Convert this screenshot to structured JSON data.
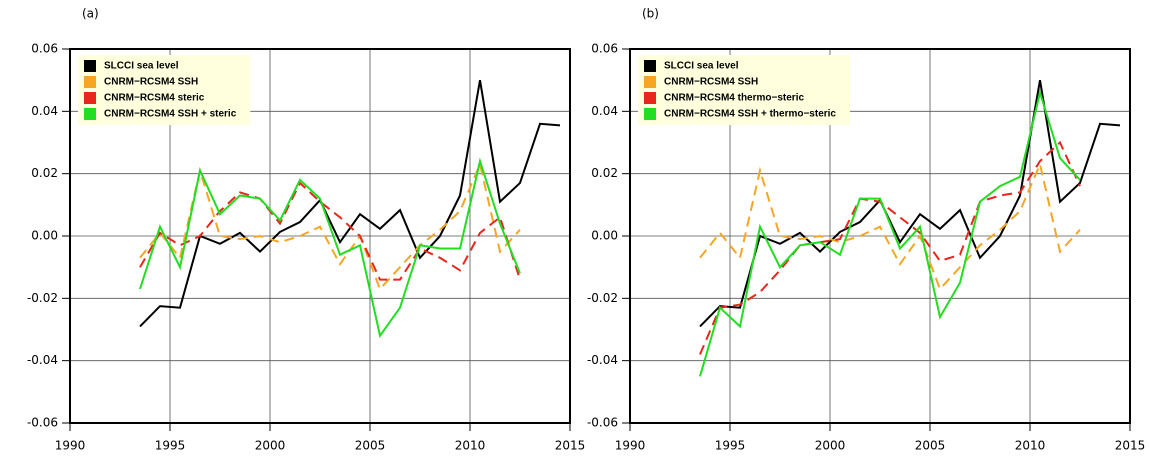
{
  "chart_data": [
    {
      "type": "line",
      "panel_label": "(a)",
      "x": [
        1993.5,
        1994.5,
        1995.5,
        1996.5,
        1997.5,
        1998.5,
        1999.5,
        2000.5,
        2001.5,
        2002.5,
        2003.5,
        2004.5,
        2005.5,
        2006.5,
        2007.5,
        2008.5,
        2009.5,
        2010.5,
        2011.5,
        2012.5,
        2013.5,
        2014.5
      ],
      "series": [
        {
          "name": "SLCCI sea level",
          "color": "#000000",
          "linestyle": "solid",
          "values": [
            -0.029,
            -0.0225,
            -0.023,
            0.0,
            -0.0025,
            0.001,
            -0.005,
            0.0013,
            0.0045,
            0.0115,
            -0.002,
            0.007,
            0.0023,
            0.0083,
            -0.007,
            0.0,
            0.013,
            0.05,
            0.011,
            0.017,
            0.036,
            0.0355
          ]
        },
        {
          "name": "CNRM−RCSM4 SSH",
          "color": "#f5a623",
          "linestyle": "dashed",
          "values": [
            -0.007,
            0.001,
            -0.007,
            0.021,
            0.0,
            -0.001,
            0.0,
            -0.002,
            0.0,
            0.003,
            -0.009,
            0.0,
            -0.017,
            -0.01,
            -0.003,
            0.002,
            0.008,
            0.023,
            -0.005,
            0.002,
            null,
            null
          ]
        },
        {
          "name": "CNRM−RCSM4 steric",
          "color": "#e8261c",
          "linestyle": "dashed",
          "values": [
            -0.01,
            0.001,
            -0.003,
            0.0,
            0.008,
            0.014,
            0.012,
            0.004,
            0.017,
            0.011,
            0.006,
            0.0,
            -0.014,
            -0.014,
            -0.004,
            -0.007,
            -0.011,
            0.001,
            0.006,
            -0.014,
            null,
            null
          ]
        },
        {
          "name": "CNRM−RCSM4 SSH + steric",
          "color": "#22dd22",
          "linestyle": "solid",
          "values": [
            -0.017,
            0.003,
            -0.01,
            0.021,
            0.007,
            0.013,
            0.012,
            0.005,
            0.018,
            0.012,
            -0.006,
            -0.003,
            -0.032,
            -0.023,
            -0.003,
            -0.004,
            -0.004,
            0.024,
            0.004,
            -0.012,
            null,
            null
          ]
        }
      ],
      "xlim": [
        1990,
        2015
      ],
      "ylim": [
        -0.06,
        0.06
      ],
      "xticks": [
        1990,
        1995,
        2000,
        2005,
        2010,
        2015
      ],
      "yticks": [
        -0.06,
        -0.04,
        -0.02,
        {
          "value": 0,
          "label": "0.00"
        },
        0.02,
        0.04,
        0.06
      ],
      "grid": true,
      "legend": "upper left"
    },
    {
      "type": "line",
      "panel_label": "(b)",
      "x": [
        1993.5,
        1994.5,
        1995.5,
        1996.5,
        1997.5,
        1998.5,
        1999.5,
        2000.5,
        2001.5,
        2002.5,
        2003.5,
        2004.5,
        2005.5,
        2006.5,
        2007.5,
        2008.5,
        2009.5,
        2010.5,
        2011.5,
        2012.5,
        2013.5,
        2014.5
      ],
      "series": [
        {
          "name": "SLCCI sea level",
          "color": "#000000",
          "linestyle": "solid",
          "values": [
            -0.029,
            -0.0225,
            -0.023,
            0.0,
            -0.0025,
            0.001,
            -0.005,
            0.0013,
            0.0045,
            0.0115,
            -0.002,
            0.007,
            0.0023,
            0.0083,
            -0.007,
            0.0,
            0.013,
            0.05,
            0.011,
            0.017,
            0.036,
            0.0355
          ]
        },
        {
          "name": "CNRM−RCSM4 SSH",
          "color": "#f5a623",
          "linestyle": "dashed",
          "values": [
            -0.007,
            0.001,
            -0.007,
            0.021,
            0.0,
            -0.001,
            0.0,
            -0.002,
            0.0,
            0.003,
            -0.009,
            0.0,
            -0.017,
            -0.01,
            -0.003,
            0.002,
            0.008,
            0.023,
            -0.005,
            0.002,
            null,
            null
          ]
        },
        {
          "name": "CNRM−RCSM4 thermo−steric",
          "color": "#e8261c",
          "linestyle": "dashed",
          "values": [
            -0.038,
            -0.023,
            -0.022,
            -0.018,
            -0.011,
            -0.003,
            -0.002,
            -0.001,
            0.012,
            0.011,
            0.006,
            0.001,
            -0.008,
            -0.006,
            0.011,
            0.013,
            0.014,
            0.024,
            0.03,
            0.016,
            null,
            null
          ]
        },
        {
          "name": "CNRM−RCSM4 SSH + thermo−steric",
          "color": "#22dd22",
          "linestyle": "solid",
          "values": [
            -0.045,
            -0.023,
            -0.029,
            0.003,
            -0.01,
            -0.003,
            -0.002,
            -0.006,
            0.012,
            0.012,
            -0.004,
            0.003,
            -0.026,
            -0.015,
            0.011,
            0.016,
            0.019,
            0.046,
            0.025,
            0.018,
            null,
            null
          ]
        }
      ],
      "xlim": [
        1990,
        2015
      ],
      "ylim": [
        -0.06,
        0.06
      ],
      "xticks": [
        1990,
        1995,
        2000,
        2005,
        2010,
        2015
      ],
      "yticks": [
        -0.06,
        -0.04,
        -0.02,
        {
          "value": 0,
          "label": "0.00"
        },
        0.02,
        0.04,
        0.06
      ],
      "grid": true,
      "legend": "upper left"
    }
  ]
}
